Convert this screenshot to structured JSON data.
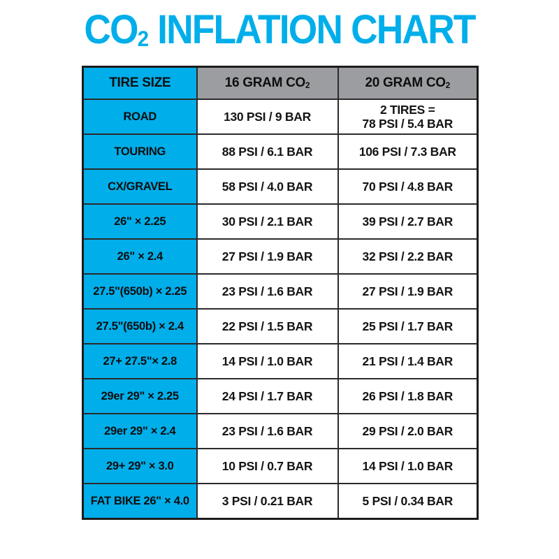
{
  "labels": {
    "title_prefix": "CO",
    "title_sub": "2",
    "title_rest": " INFLATION CHART",
    "header_tire": "TIRE SIZE",
    "header_16_prefix": "16 GRAM CO",
    "header_16_sub": "2",
    "header_20_prefix": "20 GRAM CO",
    "header_20_sub": "2"
  },
  "colors": {
    "title_cyan": "#00aeea",
    "accent_cyan": "#00aeea",
    "header_gray": "#9b9da0",
    "border_dark": "#1c1c1c",
    "background": "#ffffff",
    "text_dark": "#111111"
  },
  "chart_data": {
    "type": "table",
    "title": "CO₂ INFLATION CHART",
    "columns": [
      "TIRE SIZE",
      "16 GRAM CO₂",
      "20 GRAM CO₂"
    ],
    "rows": [
      [
        "ROAD",
        "130 PSI / 9 BAR",
        "2 TIRES =\n78 PSI / 5.4 BAR"
      ],
      [
        "TOURING",
        "88 PSI / 6.1 BAR",
        "106 PSI / 7.3 BAR"
      ],
      [
        "CX/GRAVEL",
        "58 PSI / 4.0 BAR",
        "70 PSI / 4.8 BAR"
      ],
      [
        "26\" × 2.25",
        "30 PSI / 2.1 BAR",
        "39 PSI / 2.7 BAR"
      ],
      [
        "26\" × 2.4",
        "27 PSI / 1.9 BAR",
        "32 PSI / 2.2 BAR"
      ],
      [
        "27.5\"(650b) × 2.25",
        "23 PSI / 1.6 BAR",
        "27 PSI / 1.9 BAR"
      ],
      [
        "27.5\"(650b) × 2.4",
        "22 PSI / 1.5 BAR",
        "25 PSI / 1.7 BAR"
      ],
      [
        "27+ 27.5\"× 2.8",
        "14 PSI / 1.0 BAR",
        "21 PSI / 1.4 BAR"
      ],
      [
        "29er 29\" × 2.25",
        "24 PSI / 1.7 BAR",
        "26 PSI / 1.8 BAR"
      ],
      [
        "29er 29\" × 2.4",
        "23 PSI / 1.6 BAR",
        "29 PSI / 2.0 BAR"
      ],
      [
        "29+ 29\" × 3.0",
        "10 PSI / 0.7 BAR",
        "14 PSI / 1.0 BAR"
      ],
      [
        "FAT BIKE 26\" × 4.0",
        "3 PSI / 0.21 BAR",
        "5 PSI / 0.34 BAR"
      ]
    ]
  }
}
